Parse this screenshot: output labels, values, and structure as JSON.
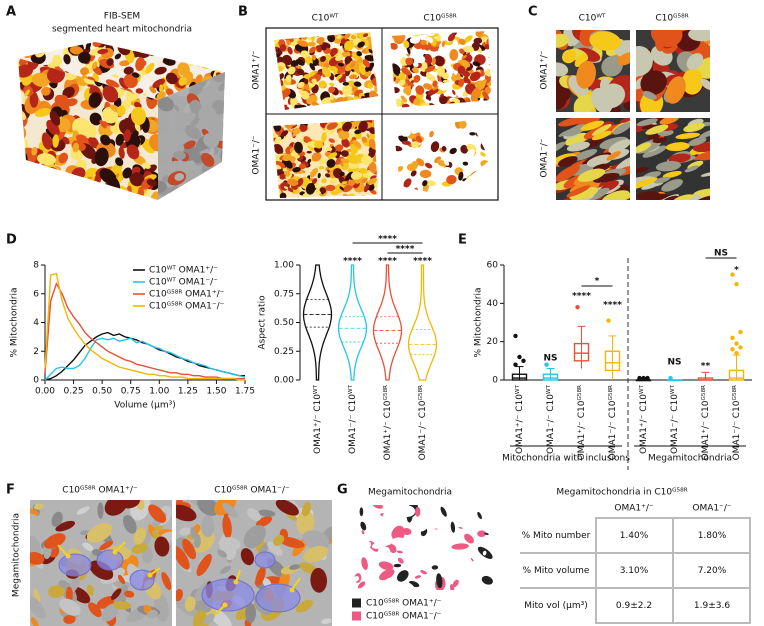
{
  "panel_a": {
    "letter": "A",
    "title": "FIB-SEM",
    "subtitle": "segmented heart mitochondria"
  },
  "panel_b": {
    "letter": "B",
    "columns": [
      "C10ᵂᵀ",
      "C10ᴳ⁵⁸ᴿ"
    ],
    "rows": [
      "OMA1⁺/⁻",
      "OMA1⁻/⁻"
    ]
  },
  "panel_c": {
    "letter": "C",
    "columns": [
      "C10ᵂᵀ",
      "C10ᴳ⁵⁸ᴿ"
    ],
    "rows": [
      "OMA1⁺/⁻",
      "OMA1⁻/⁻"
    ]
  },
  "panel_d": {
    "letter": "D"
  },
  "panel_e": {
    "letter": "E"
  },
  "chart_data": [
    {
      "type": "line",
      "ylabel": "% Mitochondria",
      "xlabel": "Volume (µm³)",
      "x": [
        0,
        0.05,
        0.1,
        0.15,
        0.2,
        0.25,
        0.3,
        0.35,
        0.4,
        0.45,
        0.5,
        0.55,
        0.6,
        0.65,
        0.7,
        0.75,
        0.8,
        0.85,
        0.9,
        0.95,
        1.0,
        1.05,
        1.1,
        1.15,
        1.2,
        1.25,
        1.3,
        1.35,
        1.4,
        1.45,
        1.5,
        1.55,
        1.6,
        1.65,
        1.7,
        1.75
      ],
      "xlim": [
        0,
        1.75
      ],
      "xticks": [
        {
          "value": 0,
          "label": "0.00"
        },
        {
          "value": 0.25,
          "label": "0.25"
        },
        {
          "value": 0.5,
          "label": "0.50"
        },
        {
          "value": 0.75,
          "label": "0.75"
        },
        {
          "value": 1,
          "label": "1.00"
        },
        {
          "value": 1.25,
          "label": "1.25"
        },
        {
          "value": 1.5,
          "label": "1.50"
        },
        {
          "value": 1.75,
          "label": "1.75"
        }
      ],
      "ylim": [
        0,
        8
      ],
      "yticks": [
        0,
        2,
        4,
        6,
        8
      ],
      "legend": "upper right",
      "series": [
        {
          "name": "C10ᵂᵀ OMA1⁺/⁻",
          "color": "#111111",
          "values": [
            0,
            0.1,
            0.3,
            0.6,
            1.0,
            1.4,
            1.9,
            2.4,
            2.7,
            3.0,
            3.2,
            3.3,
            3.1,
            3.2,
            3.0,
            2.9,
            2.8,
            2.6,
            2.5,
            2.3,
            2.1,
            2.0,
            1.8,
            1.6,
            1.5,
            1.3,
            1.2,
            1.0,
            0.9,
            0.8,
            0.7,
            0.6,
            0.5,
            0.4,
            0.3,
            0.3
          ]
        },
        {
          "name": "C10ᵂᵀ OMA1⁻/⁻",
          "color": "#29c4e6",
          "values": [
            0,
            0.4,
            0.8,
            0.9,
            0.8,
            0.8,
            1.0,
            1.5,
            2.2,
            2.8,
            2.9,
            2.8,
            2.9,
            2.7,
            2.8,
            2.9,
            2.6,
            2.7,
            2.5,
            2.3,
            2.2,
            2.0,
            1.9,
            1.7,
            1.5,
            1.4,
            1.2,
            1.1,
            1.0,
            0.8,
            0.7,
            0.6,
            0.5,
            0.4,
            0.3,
            0.2
          ]
        },
        {
          "name": "C10ᴳ⁵⁸ᴿ OMA1⁺/⁻",
          "color": "#e8503a",
          "values": [
            0.5,
            5.5,
            6.7,
            6.0,
            5.0,
            4.4,
            3.9,
            3.3,
            2.9,
            2.6,
            2.3,
            2.0,
            1.8,
            1.6,
            1.4,
            1.3,
            1.1,
            1.0,
            0.9,
            0.8,
            0.7,
            0.6,
            0.5,
            0.5,
            0.4,
            0.4,
            0.3,
            0.3,
            0.2,
            0.2,
            0.2,
            0.1,
            0.1,
            0.1,
            0.1,
            0.1
          ]
        },
        {
          "name": "C10ᴳ⁵⁸ᴿ OMA1⁻/⁻",
          "color": "#f2b705",
          "values": [
            0.8,
            7.3,
            7.4,
            5.5,
            4.3,
            3.6,
            3.0,
            2.5,
            2.1,
            1.8,
            1.5,
            1.3,
            1.1,
            0.9,
            0.8,
            0.7,
            0.6,
            0.5,
            0.4,
            0.4,
            0.3,
            0.3,
            0.2,
            0.2,
            0.2,
            0.1,
            0.1,
            0.1,
            0.1,
            0.1,
            0.1,
            0.1,
            0.1,
            0.1,
            0,
            0
          ]
        }
      ]
    },
    {
      "type": "violin",
      "ylabel": "Aspect ratio",
      "categories": [
        "OMA1⁺/⁻ C10ᵂᵀ",
        "OMA1⁻/⁻ C10ᵂᵀ",
        "OMA1⁺/⁻ C10ᴳ⁵⁸ᴿ",
        "OMA1⁻/⁻ C10ᴳ⁵⁸ᴿ"
      ],
      "violins": [
        {
          "q1": 0.46,
          "median": 0.57,
          "q3": 0.7,
          "color": "#111111"
        },
        {
          "q1": 0.33,
          "median": 0.45,
          "q3": 0.55,
          "color": "#29c4e6"
        },
        {
          "q1": 0.32,
          "median": 0.43,
          "q3": 0.55,
          "color": "#e8503a"
        },
        {
          "q1": 0.22,
          "median": 0.31,
          "q3": 0.44,
          "color": "#f2b705"
        }
      ],
      "ylim": [
        0,
        1
      ],
      "yticks": [
        {
          "value": 0,
          "label": "0.00"
        },
        {
          "value": 0.25,
          "label": "0.25"
        },
        {
          "value": 0.5,
          "label": "0.50"
        },
        {
          "value": 0.75,
          "label": "0.75"
        },
        {
          "value": 1,
          "label": "1.00"
        }
      ],
      "annotations": [
        "****",
        "****",
        "****",
        "****",
        "****"
      ]
    },
    {
      "type": "box",
      "ylabel": "% Mitochondria",
      "categories": [
        "OMA1⁺/⁻ C10ᵂᵀ",
        "OMA1⁻/⁻ C10ᵂᵀ",
        "OMA1⁺/⁻ C10ᴳ⁵⁸ᴿ",
        "OMA1⁻/⁻ C10ᴳ⁵⁸ᴿ",
        "OMA1⁺/⁻ C10ᵂᵀ",
        "OMA1⁻/⁻ C10ᵂᵀ",
        "OMA1⁺/⁻ C10ᴳ⁵⁸ᴿ",
        "OMA1⁻/⁻ C10ᴳ⁵⁸ᴿ"
      ],
      "groups": [
        "Mitochondria with inclusions",
        "Megamitochondria"
      ],
      "ylim": [
        0,
        60
      ],
      "yticks": [
        0,
        20,
        40,
        60
      ],
      "boxes": [
        {
          "min": 0,
          "q1": 0,
          "median": 1,
          "q3": 3,
          "max": 7,
          "outliers": [
            23,
            12,
            10,
            8
          ],
          "color": "#111111"
        },
        {
          "min": 0,
          "q1": 0,
          "median": 1,
          "q3": 3,
          "max": 6,
          "outliers": [
            8
          ],
          "color": "#29c4e6"
        },
        {
          "min": 6,
          "q1": 10,
          "median": 14,
          "q3": 19,
          "max": 28,
          "outliers": [
            38
          ],
          "color": "#e8503a"
        },
        {
          "min": 0,
          "q1": 5,
          "median": 9,
          "q3": 15,
          "max": 23,
          "outliers": [
            31
          ],
          "color": "#f2b705"
        },
        {
          "min": 0,
          "q1": 0,
          "median": 0,
          "q3": 0,
          "max": 0,
          "outliers": [
            1,
            1,
            1
          ],
          "color": "#111111"
        },
        {
          "min": 0,
          "q1": 0,
          "median": 0,
          "q3": 0,
          "max": 0,
          "outliers": [
            1
          ],
          "color": "#29c4e6"
        },
        {
          "min": 0,
          "q1": 0,
          "median": 0,
          "q3": 1,
          "max": 4,
          "outliers": [],
          "color": "#e8503a"
        },
        {
          "min": 0,
          "q1": 0,
          "median": 1,
          "q3": 5,
          "max": 13,
          "outliers": [
            55,
            50,
            25,
            22,
            19,
            17,
            16,
            14
          ],
          "color": "#f2b705"
        }
      ],
      "annotations": [
        "NS",
        "****",
        "****",
        "*",
        "NS",
        "**",
        "*",
        "NS"
      ]
    }
  ],
  "panel_f": {
    "letter": "F",
    "columns": [
      "C10ᴳ⁵⁸ᴿ OMA1⁺/⁻",
      "C10ᴳ⁵⁸ᴿ OMA1⁻/⁻"
    ],
    "row_label": "Megamitochondria"
  },
  "panel_g": {
    "letter": "G",
    "image_title": "Megamitochondria",
    "legend": [
      {
        "label": "C10ᴳ⁵⁸ᴿ OMA1⁺/⁻",
        "color": "#222222"
      },
      {
        "label": "C10ᴳ⁵⁸ᴿ OMA1⁻/⁻",
        "color": "#ee5a83"
      }
    ],
    "table": {
      "title": "Megamitochondria in C10ᴳ⁵⁸ᴿ",
      "header": [
        "OMA1⁺/⁻",
        "OMA1⁻/⁻"
      ],
      "rows": [
        [
          "% Mito number",
          "1.40%",
          "1.80%"
        ],
        [
          "% Mito volume",
          "3.10%",
          "7.20%"
        ],
        [
          "Mito vol (µm³)",
          "0.9±2.2",
          "1.9±3.6"
        ]
      ]
    }
  }
}
